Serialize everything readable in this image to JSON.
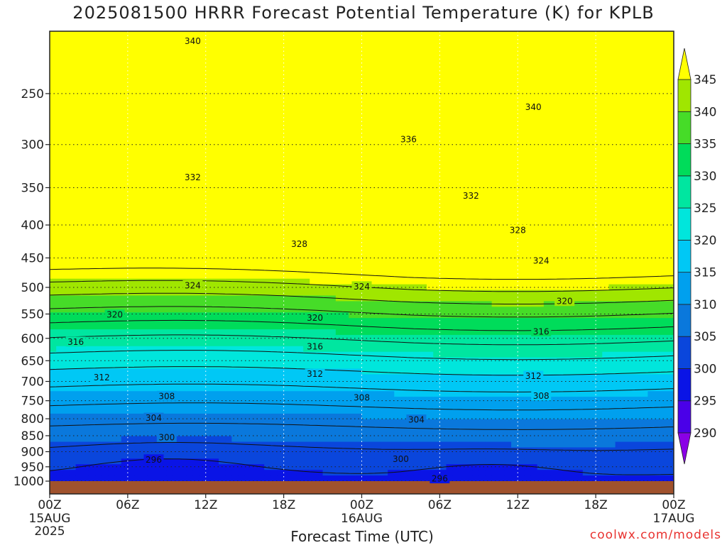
{
  "title": "2025081500 HRRR Forecast Potential Temperature (K) for KPLB",
  "credit": "coolwx.com/models",
  "colors": {
    "ground": "#a0522d",
    "bands": [
      {
        "min": 285,
        "max": 290,
        "color": "#8a00e6"
      },
      {
        "min": 290,
        "max": 295,
        "color": "#4a00e8"
      },
      {
        "min": 295,
        "max": 300,
        "color": "#0a14e6"
      },
      {
        "min": 300,
        "max": 305,
        "color": "#0a46dc"
      },
      {
        "min": 305,
        "max": 310,
        "color": "#0a78dc"
      },
      {
        "min": 310,
        "max": 315,
        "color": "#00a0ee"
      },
      {
        "min": 315,
        "max": 320,
        "color": "#00c8f5"
      },
      {
        "min": 320,
        "max": 325,
        "color": "#00e6dc"
      },
      {
        "min": 325,
        "max": 330,
        "color": "#00e6a0"
      },
      {
        "min": 330,
        "max": 335,
        "color": "#00dc5a"
      },
      {
        "min": 335,
        "max": 340,
        "color": "#46dc28"
      },
      {
        "min": 340,
        "max": 345,
        "color": "#a0e600"
      },
      {
        "min": 345,
        "max": 350,
        "color": "#ffff00"
      }
    ]
  },
  "chart_data": {
    "type": "heatmap",
    "title": "2025081500 HRRR Forecast Potential Temperature (K) for KPLB",
    "xlabel": "Forecast Time (UTC)",
    "ylabel": "",
    "x_ticks": [
      {
        "hour": 0,
        "label": "00Z",
        "sub": [
          "15AUG",
          "2025"
        ]
      },
      {
        "hour": 6,
        "label": "06Z",
        "sub": []
      },
      {
        "hour": 12,
        "label": "12Z",
        "sub": []
      },
      {
        "hour": 18,
        "label": "18Z",
        "sub": []
      },
      {
        "hour": 24,
        "label": "00Z",
        "sub": [
          "16AUG"
        ]
      },
      {
        "hour": 30,
        "label": "06Z",
        "sub": []
      },
      {
        "hour": 36,
        "label": "12Z",
        "sub": []
      },
      {
        "hour": 42,
        "label": "18Z",
        "sub": []
      },
      {
        "hour": 48,
        "label": "00Z",
        "sub": [
          "17AUG"
        ]
      }
    ],
    "x_range_hours": [
      0,
      48
    ],
    "y_ticks": [
      250,
      300,
      350,
      400,
      450,
      500,
      550,
      600,
      650,
      700,
      750,
      800,
      850,
      900,
      950,
      1000
    ],
    "y_range_hpa": [
      200,
      1000
    ],
    "y_scale": "log-pressure",
    "colorbar": {
      "ticks": [
        290,
        295,
        300,
        305,
        310,
        315,
        320,
        325,
        330,
        335,
        340,
        345
      ],
      "range": [
        285,
        350
      ],
      "placement": "right"
    },
    "grid": "dotted",
    "contour_interval": 4,
    "contour_labels": [
      {
        "value": "340",
        "hour": 11,
        "hpa": 207
      },
      {
        "value": "340",
        "hour": 37.2,
        "hpa": 262
      },
      {
        "value": "336",
        "hour": 27.6,
        "hpa": 294
      },
      {
        "value": "332",
        "hour": 11,
        "hpa": 337
      },
      {
        "value": "332",
        "hour": 32.4,
        "hpa": 360
      },
      {
        "value": "328",
        "hour": 19.2,
        "hpa": 428
      },
      {
        "value": "328",
        "hour": 36,
        "hpa": 407
      },
      {
        "value": "324",
        "hour": 11,
        "hpa": 496
      },
      {
        "value": "324",
        "hour": 24,
        "hpa": 498
      },
      {
        "value": "324",
        "hour": 37.8,
        "hpa": 454
      },
      {
        "value": "320",
        "hour": 5,
        "hpa": 551
      },
      {
        "value": "320",
        "hour": 20.4,
        "hpa": 557
      },
      {
        "value": "320",
        "hour": 39.6,
        "hpa": 525
      },
      {
        "value": "316",
        "hour": 2,
        "hpa": 607
      },
      {
        "value": "316",
        "hour": 20.4,
        "hpa": 617
      },
      {
        "value": "316",
        "hour": 37.8,
        "hpa": 585
      },
      {
        "value": "312",
        "hour": 4,
        "hpa": 689
      },
      {
        "value": "312",
        "hour": 20.4,
        "hpa": 681
      },
      {
        "value": "312",
        "hour": 37.2,
        "hpa": 686
      },
      {
        "value": "308",
        "hour": 9,
        "hpa": 737
      },
      {
        "value": "308",
        "hour": 24,
        "hpa": 741
      },
      {
        "value": "308",
        "hour": 37.8,
        "hpa": 736
      },
      {
        "value": "304",
        "hour": 8,
        "hpa": 797
      },
      {
        "value": "304",
        "hour": 28.2,
        "hpa": 802
      },
      {
        "value": "300",
        "hour": 9,
        "hpa": 854
      },
      {
        "value": "300",
        "hour": 27,
        "hpa": 923
      },
      {
        "value": "296",
        "hour": 8,
        "hpa": 925
      },
      {
        "value": "296",
        "hour": 30,
        "hpa": 990
      }
    ]
  }
}
